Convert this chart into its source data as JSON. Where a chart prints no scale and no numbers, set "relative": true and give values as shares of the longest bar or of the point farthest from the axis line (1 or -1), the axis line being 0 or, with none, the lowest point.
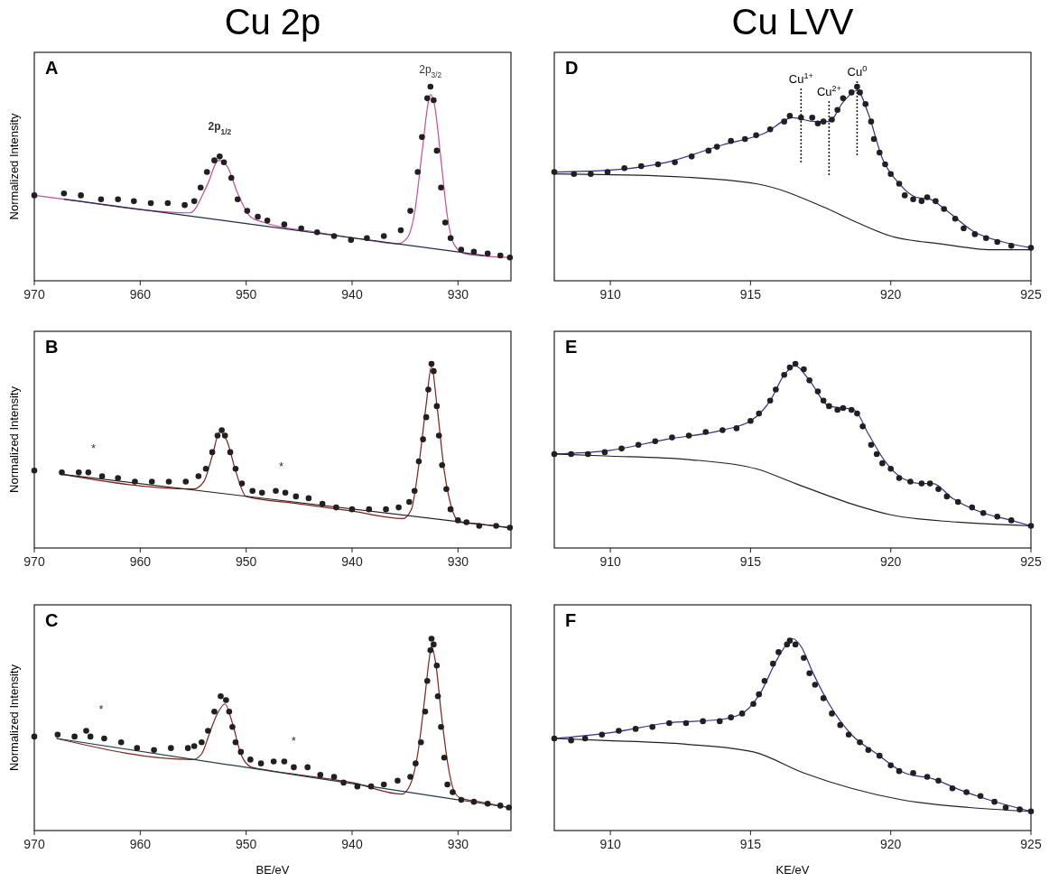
{
  "chart_data": [
    {
      "type": "scatter",
      "title": "Cu 2p",
      "ylabel": "Normalized Intensity",
      "relative": true,
      "xlim": [
        970,
        925
      ],
      "xticks": [
        970,
        960,
        950,
        940,
        930
      ],
      "annotations": [
        "A",
        "2p$_{1/2}$",
        "2p$_{3/2}$"
      ],
      "series": [
        {
          "type": "scatter",
          "color": "#231f20",
          "x": [
            970,
            967.2,
            965.6,
            963.7,
            962.1,
            960.6,
            959.0,
            957.4,
            955.8,
            954.9,
            954.3,
            953.7,
            953.0,
            952.5,
            952.1,
            951.4,
            950.8,
            949.9,
            948.9,
            948.0,
            946.4,
            944.8,
            943.3,
            941.7,
            940.1,
            938.6,
            937.0,
            935.4,
            934.5,
            933.8,
            933.4,
            932.9,
            932.6,
            932.3,
            932.0,
            931.6,
            931.2,
            930.7,
            929.7,
            928.5,
            927.2,
            926.0,
            925.1
          ],
          "values": [
            0.44,
            0.45,
            0.44,
            0.42,
            0.42,
            0.41,
            0.4,
            0.4,
            0.39,
            0.41,
            0.48,
            0.56,
            0.62,
            0.64,
            0.61,
            0.53,
            0.42,
            0.36,
            0.33,
            0.31,
            0.29,
            0.27,
            0.25,
            0.23,
            0.21,
            0.22,
            0.23,
            0.26,
            0.36,
            0.56,
            0.74,
            0.94,
            1,
            0.93,
            0.67,
            0.48,
            0.3,
            0.22,
            0.16,
            0.15,
            0.14,
            0.13,
            0.12
          ]
        },
        {
          "type": "line",
          "color": "#c0509a",
          "x": [
            970,
            967.2,
            955.3,
            953.7,
            952.6,
            951.8,
            950.8,
            949.6,
            948.3,
            943.3,
            938.6,
            935.7,
            934.8,
            934.1,
            933.4,
            932.8,
            932.6,
            932.2,
            931.6,
            931.0,
            930.4,
            929.4,
            928.0,
            925.1
          ],
          "values": [
            0.44,
            0.42,
            0.35,
            0.49,
            0.62,
            0.59,
            0.45,
            0.33,
            0.3,
            0.25,
            0.21,
            0.19,
            0.22,
            0.35,
            0.66,
            0.92,
            0.96,
            0.9,
            0.62,
            0.33,
            0.19,
            0.14,
            0.13,
            0.12
          ]
        },
        {
          "type": "line",
          "color": "#1c2a4a",
          "x": [
            967.2,
            927.5
          ],
          "values": [
            0.42,
            0.13
          ]
        }
      ]
    },
    {
      "type": "scatter",
      "title": "Cu LVV",
      "relative": true,
      "xlim": [
        908,
        925
      ],
      "xticks": [
        910,
        915,
        920,
        925
      ],
      "annotations": [
        "D"
      ],
      "ref_lines": [
        {
          "axis": "x",
          "value": 916.8,
          "label": "Cu$^{1+}$",
          "line_style": "dotted",
          "color": "#231f20"
        },
        {
          "axis": "x",
          "value": 917.8,
          "label": "Cu$^{2+}$",
          "line_style": "dotted",
          "color": "#231f20"
        },
        {
          "axis": "x",
          "value": 918.8,
          "label": "Cu$^{0}$",
          "line_style": "dotted",
          "color": "#231f20"
        }
      ],
      "series": [
        {
          "type": "scatter",
          "color": "#231f20",
          "x": [
            908.0,
            908.7,
            909.3,
            909.9,
            910.5,
            911.1,
            911.7,
            912.3,
            912.9,
            913.5,
            913.8,
            914.3,
            914.8,
            915.2,
            915.7,
            916.2,
            916.4,
            916.8,
            917.2,
            917.4,
            917.6,
            917.9,
            918.1,
            918.3,
            918.6,
            918.8,
            918.9,
            919.1,
            919.3,
            919.4,
            919.6,
            919.8,
            920.0,
            920.3,
            920.5,
            920.8,
            921.1,
            921.3,
            921.6,
            921.9,
            922.3,
            922.6,
            923.0,
            923.4,
            923.8,
            924.3,
            925.0
          ],
          "values": [
            0.56,
            0.55,
            0.55,
            0.56,
            0.58,
            0.59,
            0.6,
            0.61,
            0.64,
            0.67,
            0.69,
            0.72,
            0.73,
            0.75,
            0.78,
            0.82,
            0.85,
            0.84,
            0.84,
            0.81,
            0.82,
            0.83,
            0.88,
            0.94,
            0.97,
            1,
            0.97,
            0.91,
            0.82,
            0.73,
            0.66,
            0.6,
            0.55,
            0.5,
            0.44,
            0.42,
            0.41,
            0.43,
            0.41,
            0.37,
            0.32,
            0.27,
            0.24,
            0.22,
            0.2,
            0.18,
            0.17
          ]
        },
        {
          "type": "line",
          "color": "#2e3192",
          "x": [
            908,
            910,
            912,
            914,
            915.5,
            916.5,
            917.3,
            917.8,
            918.3,
            918.8,
            919.2,
            919.7,
            920.3,
            920.9,
            921.4,
            922,
            923,
            924,
            925
          ],
          "values": [
            0.56,
            0.57,
            0.61,
            0.7,
            0.76,
            0.84,
            0.82,
            0.82,
            0.92,
            0.98,
            0.86,
            0.63,
            0.5,
            0.43,
            0.42,
            0.36,
            0.25,
            0.2,
            0.17
          ]
        },
        {
          "type": "line",
          "color": "#231f20",
          "x": [
            908,
            911.7,
            915.2,
            917.6,
            918.8,
            920,
            921.8,
            923.6,
            925
          ],
          "values": [
            0.55,
            0.54,
            0.5,
            0.38,
            0.3,
            0.23,
            0.19,
            0.16,
            0.16
          ]
        }
      ]
    },
    {
      "type": "scatter",
      "ylabel": "Normalized Intensity",
      "relative": true,
      "xlim": [
        970,
        925
      ],
      "xticks": [
        970,
        960,
        950,
        940,
        930
      ],
      "annotations": [
        "B",
        "*",
        "*"
      ],
      "series": [
        {
          "type": "scatter",
          "color": "#231f20",
          "x": [
            970,
            967.4,
            965.8,
            964.9,
            963.6,
            962.1,
            960.5,
            958.9,
            957.3,
            955.7,
            954.5,
            953.8,
            953.2,
            952.7,
            952.3,
            952.0,
            951.5,
            951.0,
            950.4,
            949.4,
            948.5,
            947.2,
            946.3,
            945.3,
            944.1,
            942.8,
            941.5,
            940.0,
            938.4,
            936.8,
            935.6,
            934.6,
            934.1,
            933.7,
            933.3,
            933.0,
            932.8,
            932.5,
            932.3,
            932.0,
            931.8,
            931.5,
            931.1,
            930.7,
            930.0,
            929.2,
            928.0,
            926.4,
            925.1
          ],
          "values": [
            0.42,
            0.41,
            0.41,
            0.41,
            0.39,
            0.38,
            0.36,
            0.36,
            0.36,
            0.36,
            0.39,
            0.43,
            0.52,
            0.61,
            0.64,
            0.61,
            0.52,
            0.43,
            0.35,
            0.31,
            0.3,
            0.31,
            0.3,
            0.28,
            0.27,
            0.24,
            0.22,
            0.21,
            0.21,
            0.21,
            0.22,
            0.25,
            0.31,
            0.47,
            0.59,
            0.71,
            0.86,
            1,
            0.96,
            0.77,
            0.61,
            0.45,
            0.32,
            0.21,
            0.15,
            0.14,
            0.12,
            0.12,
            0.11
          ]
        },
        {
          "type": "line",
          "color": "#7a2318",
          "x": [
            967.4,
            955.0,
            954.0,
            953.2,
            952.5,
            951.8,
            951.0,
            950.0,
            945,
            940,
            935.2,
            934.4,
            933.7,
            933.0,
            932.5,
            932.0,
            931.3,
            930.5,
            929.8,
            928,
            925.1
          ],
          "values": [
            0.4,
            0.32,
            0.36,
            0.5,
            0.63,
            0.58,
            0.42,
            0.28,
            0.24,
            0.2,
            0.16,
            0.21,
            0.45,
            0.78,
            0.99,
            0.78,
            0.42,
            0.2,
            0.14,
            0.13,
            0.11
          ]
        },
        {
          "type": "line",
          "color": "#231f20",
          "x": [
            967.4,
            925.1
          ],
          "values": [
            0.4,
            0.11
          ]
        }
      ]
    },
    {
      "type": "scatter",
      "relative": true,
      "xlim": [
        908,
        925
      ],
      "xticks": [
        910,
        915,
        920,
        925
      ],
      "annotations": [
        "E"
      ],
      "series": [
        {
          "type": "scatter",
          "color": "#231f20",
          "x": [
            908.0,
            908.6,
            909.2,
            909.8,
            910.4,
            911.0,
            911.6,
            912.2,
            912.8,
            913.4,
            914.0,
            914.5,
            915.0,
            915.3,
            915.7,
            915.9,
            916.2,
            916.4,
            916.6,
            916.9,
            917.1,
            917.4,
            917.6,
            917.8,
            918.1,
            918.3,
            918.6,
            918.8,
            919.0,
            919.3,
            919.5,
            919.7,
            920.0,
            920.3,
            920.7,
            921.1,
            921.4,
            921.7,
            922.0,
            922.4,
            922.9,
            923.3,
            923.8,
            924.3,
            925.0
          ],
          "values": [
            0.51,
            0.51,
            0.51,
            0.52,
            0.54,
            0.56,
            0.58,
            0.6,
            0.61,
            0.63,
            0.64,
            0.65,
            0.69,
            0.73,
            0.8,
            0.86,
            0.94,
            0.98,
            1,
            0.97,
            0.91,
            0.85,
            0.8,
            0.77,
            0.75,
            0.76,
            0.75,
            0.73,
            0.66,
            0.56,
            0.51,
            0.46,
            0.43,
            0.38,
            0.36,
            0.35,
            0.35,
            0.32,
            0.28,
            0.25,
            0.22,
            0.19,
            0.17,
            0.15,
            0.12
          ]
        },
        {
          "type": "line",
          "color": "#2e3192",
          "x": [
            908,
            910,
            912,
            914,
            915,
            915.7,
            916.2,
            916.6,
            917.1,
            917.8,
            918.3,
            918.7,
            919.2,
            919.8,
            920.4,
            921.1,
            921.5,
            922.2,
            923.3,
            924.3,
            925
          ],
          "values": [
            0.51,
            0.53,
            0.59,
            0.64,
            0.69,
            0.8,
            0.94,
            0.99,
            0.91,
            0.77,
            0.76,
            0.75,
            0.62,
            0.47,
            0.38,
            0.35,
            0.35,
            0.27,
            0.19,
            0.15,
            0.12
          ]
        },
        {
          "type": "line",
          "color": "#231f20",
          "x": [
            908,
            909.8,
            912.8,
            915.2,
            916.6,
            918.8,
            920,
            922.4,
            925
          ],
          "values": [
            0.51,
            0.5,
            0.48,
            0.43,
            0.35,
            0.23,
            0.18,
            0.14,
            0.12
          ]
        }
      ]
    },
    {
      "type": "scatter",
      "ylabel": "Normalized Intensity",
      "xlabel": "BE/eV",
      "relative": true,
      "xlim": [
        970,
        925
      ],
      "xticks": [
        970,
        960,
        950,
        940,
        930
      ],
      "annotations": [
        "C",
        "*",
        "*"
      ],
      "series": [
        {
          "type": "scatter",
          "color": "#231f20",
          "x": [
            970,
            967.8,
            966.2,
            965.1,
            964.7,
            963.4,
            961.8,
            960.3,
            958.7,
            957.1,
            955.5,
            954.9,
            954.2,
            953.6,
            953.0,
            952.4,
            951.9,
            951.6,
            951.3,
            951.0,
            950.5,
            949.6,
            948.6,
            947.4,
            946.4,
            945.5,
            944.2,
            943.0,
            941.7,
            940.8,
            939.5,
            938.2,
            937.0,
            935.7,
            934.5,
            934.0,
            933.5,
            933.1,
            932.9,
            932.6,
            932.5,
            932.3,
            932.0,
            931.9,
            931.6,
            931.3,
            931.0,
            930.5,
            929.7,
            928.5,
            927.2,
            926.0,
            925.2
          ],
          "values": [
            0.49,
            0.5,
            0.49,
            0.52,
            0.49,
            0.48,
            0.46,
            0.43,
            0.42,
            0.43,
            0.43,
            0.44,
            0.46,
            0.52,
            0.62,
            0.7,
            0.68,
            0.62,
            0.54,
            0.46,
            0.41,
            0.37,
            0.35,
            0.36,
            0.36,
            0.33,
            0.33,
            0.29,
            0.28,
            0.25,
            0.23,
            0.23,
            0.24,
            0.26,
            0.28,
            0.35,
            0.46,
            0.62,
            0.78,
            0.94,
            1,
            0.97,
            0.86,
            0.7,
            0.54,
            0.38,
            0.24,
            0.2,
            0.16,
            0.15,
            0.14,
            0.13,
            0.12
          ]
        },
        {
          "type": "line",
          "color": "#7a2318",
          "x": [
            967.9,
            955.0,
            954.2,
            953.5,
            952.8,
            952.0,
            951.3,
            950.5,
            949.5,
            948.5,
            945,
            940,
            935.3,
            934.5,
            933.8,
            933.2,
            932.7,
            932.5,
            932.1,
            931.6,
            931.0,
            930.4,
            929.8,
            928,
            925.2
          ],
          "values": [
            0.48,
            0.37,
            0.4,
            0.5,
            0.6,
            0.66,
            0.56,
            0.4,
            0.33,
            0.32,
            0.29,
            0.25,
            0.19,
            0.24,
            0.4,
            0.66,
            0.9,
            0.96,
            0.87,
            0.62,
            0.36,
            0.21,
            0.17,
            0.15,
            0.12
          ]
        },
        {
          "type": "line",
          "color": "#1b3b40",
          "x": [
            967.9,
            925.2
          ],
          "values": [
            0.48,
            0.12
          ]
        }
      ]
    },
    {
      "type": "scatter",
      "xlabel": "KE/eV",
      "relative": true,
      "xlim": [
        908,
        925
      ],
      "xticks": [
        910,
        915,
        920,
        925
      ],
      "annotations": [
        "F"
      ],
      "series": [
        {
          "type": "scatter",
          "color": "#231f20",
          "x": [
            908.0,
            908.6,
            909.1,
            909.7,
            910.3,
            910.9,
            911.5,
            912.1,
            912.7,
            913.3,
            913.9,
            914.3,
            914.7,
            915.1,
            915.3,
            915.5,
            915.8,
            916.0,
            916.3,
            916.4,
            916.6,
            916.9,
            917.1,
            917.3,
            917.6,
            917.9,
            918.2,
            918.5,
            918.9,
            919.2,
            919.6,
            920.0,
            920.3,
            920.8,
            921.3,
            921.7,
            922.2,
            922.7,
            923.2,
            923.7,
            924.1,
            924.6,
            925.0
          ],
          "values": [
            0.48,
            0.47,
            0.48,
            0.5,
            0.52,
            0.53,
            0.54,
            0.56,
            0.56,
            0.57,
            0.57,
            0.59,
            0.61,
            0.66,
            0.71,
            0.78,
            0.87,
            0.93,
            0.97,
            0.99,
            0.97,
            0.9,
            0.82,
            0.76,
            0.69,
            0.61,
            0.55,
            0.5,
            0.46,
            0.42,
            0.39,
            0.34,
            0.31,
            0.3,
            0.28,
            0.26,
            0.22,
            0.2,
            0.18,
            0.15,
            0.12,
            0.11,
            0.1
          ]
        },
        {
          "type": "line",
          "color": "#2e3192",
          "x": [
            908,
            910,
            912,
            914,
            914.8,
            915.4,
            915.9,
            916.4,
            916.5,
            916.8,
            917.2,
            917.8,
            918.6,
            919.5,
            920.5,
            921.5,
            922.5,
            923.5,
            925
          ],
          "values": [
            0.48,
            0.51,
            0.56,
            0.58,
            0.62,
            0.73,
            0.88,
            0.99,
            1,
            0.96,
            0.83,
            0.66,
            0.5,
            0.4,
            0.3,
            0.27,
            0.21,
            0.16,
            0.1
          ]
        },
        {
          "type": "line",
          "color": "#231f20",
          "x": [
            908,
            909.7,
            912.7,
            915.1,
            916.9,
            918.6,
            920.4,
            922.8,
            925
          ],
          "values": [
            0.48,
            0.47,
            0.45,
            0.41,
            0.3,
            0.22,
            0.16,
            0.12,
            0.1
          ]
        }
      ]
    }
  ]
}
